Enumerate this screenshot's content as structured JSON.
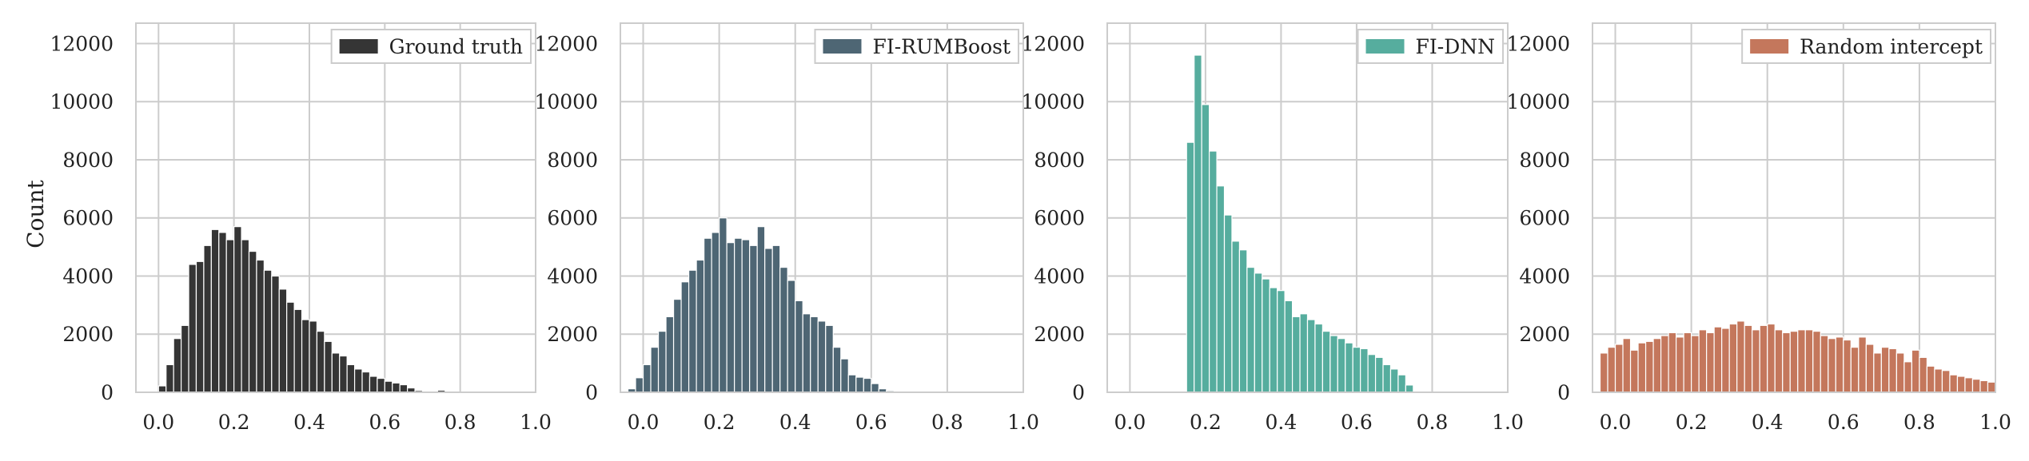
{
  "figure": {
    "ylabel": "Count"
  },
  "chart_data": [
    {
      "type": "bar",
      "legend": "Ground truth",
      "legend_position": "top-right",
      "color": "#353535",
      "xlim": [
        -0.06,
        1.0
      ],
      "ylim": [
        0,
        12700
      ],
      "xticks": [
        "0.0",
        "0.2",
        "0.4",
        "0.6",
        "0.8",
        "1.0"
      ],
      "yticks": [
        "0",
        "2000",
        "4000",
        "6000",
        "8000",
        "10000",
        "12000"
      ],
      "grid": true,
      "bin_width": 0.02,
      "bin_start": 0.0,
      "values": [
        220,
        950,
        1850,
        2300,
        4400,
        4500,
        5050,
        5600,
        5500,
        5250,
        5700,
        5250,
        4850,
        4550,
        4200,
        4000,
        3550,
        3100,
        2850,
        2500,
        2450,
        2100,
        1750,
        1350,
        1250,
        950,
        800,
        700,
        550,
        480,
        380,
        320,
        260,
        150,
        60,
        0,
        0,
        70,
        0,
        0,
        0,
        0,
        0,
        0,
        0,
        0,
        0,
        0,
        0,
        0
      ]
    },
    {
      "type": "bar",
      "legend": "FI-RUMBoost",
      "legend_position": "top-right",
      "color": "#4e6674",
      "xlim": [
        -0.06,
        1.0
      ],
      "ylim": [
        0,
        12700
      ],
      "xticks": [
        "0.0",
        "0.2",
        "0.4",
        "0.6",
        "0.8",
        "1.0"
      ],
      "yticks": [
        "0",
        "2000",
        "4000",
        "6000",
        "8000",
        "10000",
        "12000"
      ],
      "grid": true,
      "bin_width": 0.02,
      "bin_start": -0.04,
      "values": [
        120,
        500,
        950,
        1550,
        2100,
        2600,
        3200,
        3800,
        4200,
        4550,
        5300,
        5500,
        6000,
        5150,
        5300,
        5250,
        5050,
        5700,
        4950,
        5050,
        4300,
        3850,
        3150,
        2700,
        2600,
        2450,
        2300,
        1550,
        1150,
        600,
        520,
        480,
        300,
        120,
        50,
        0,
        0,
        0,
        0,
        0,
        0,
        0,
        0,
        0,
        0,
        0,
        0,
        0,
        0,
        0,
        0,
        0
      ]
    },
    {
      "type": "bar",
      "legend": "FI-DNN",
      "legend_position": "top-right",
      "color": "#56ad9e",
      "xlim": [
        -0.06,
        1.0
      ],
      "ylim": [
        0,
        12700
      ],
      "xticks": [
        "0.0",
        "0.2",
        "0.4",
        "0.6",
        "0.8",
        "1.0"
      ],
      "yticks": [
        "0",
        "2000",
        "4000",
        "6000",
        "8000",
        "10000",
        "12000"
      ],
      "grid": true,
      "bin_width": 0.02,
      "bin_start": 0.15,
      "values": [
        8600,
        11600,
        9900,
        8300,
        7100,
        6100,
        5200,
        4900,
        4300,
        4100,
        3900,
        3600,
        3500,
        3150,
        2600,
        2700,
        2500,
        2350,
        2100,
        1950,
        1850,
        1700,
        1550,
        1500,
        1300,
        1200,
        950,
        800,
        600,
        250
      ]
    },
    {
      "type": "bar",
      "legend": "Random intercept",
      "legend_position": "top-right",
      "color": "#c4775c",
      "xlim": [
        -0.06,
        1.0
      ],
      "ylim": [
        0,
        12700
      ],
      "xticks": [
        "0.0",
        "0.2",
        "0.4",
        "0.6",
        "0.8",
        "1.0"
      ],
      "yticks": [
        "0",
        "2000",
        "4000",
        "6000",
        "8000",
        "10000",
        "12000"
      ],
      "grid": true,
      "bin_width": 0.02,
      "bin_start": -0.04,
      "values": [
        1350,
        1550,
        1650,
        1850,
        1450,
        1700,
        1750,
        1850,
        1950,
        2050,
        1900,
        2050,
        1950,
        2150,
        2050,
        2250,
        2200,
        2350,
        2450,
        2300,
        2150,
        2300,
        2350,
        2150,
        2050,
        2100,
        2150,
        2150,
        2100,
        1950,
        1850,
        1900,
        1800,
        1550,
        1900,
        1650,
        1350,
        1550,
        1500,
        1350,
        1050,
        1450,
        1200,
        900,
        800,
        750,
        600,
        550,
        500,
        450,
        400,
        350
      ]
    }
  ]
}
